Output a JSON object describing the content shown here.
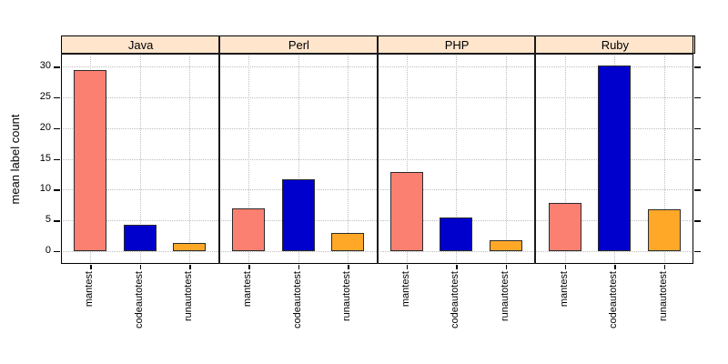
{
  "chart_data": {
    "type": "bar",
    "title": "",
    "ylabel": "mean label count",
    "xlabel": "",
    "panels": [
      "Java",
      "Perl",
      "PHP",
      "Ruby"
    ],
    "categories": [
      "mantest",
      "codeautotest",
      "runautotest"
    ],
    "series": [
      {
        "panel": "Java",
        "values": [
          29.5,
          4.3,
          1.3
        ]
      },
      {
        "panel": "Perl",
        "values": [
          7.0,
          11.7,
          3.0
        ]
      },
      {
        "panel": "PHP",
        "values": [
          12.8,
          5.5,
          1.7
        ]
      },
      {
        "panel": "Ruby",
        "values": [
          7.8,
          30.2,
          6.8
        ]
      }
    ],
    "yticks": [
      0,
      5,
      10,
      15,
      20,
      25,
      30
    ],
    "ylim": [
      -2.1,
      32.1
    ],
    "grid": true,
    "legend": "none",
    "bar_colors": [
      "#FC8072",
      "#0000CD",
      "#FFA828"
    ],
    "strip_fill": "#FFE5CC",
    "grid_color": "#bdbdbd",
    "border_color": "#000000"
  }
}
